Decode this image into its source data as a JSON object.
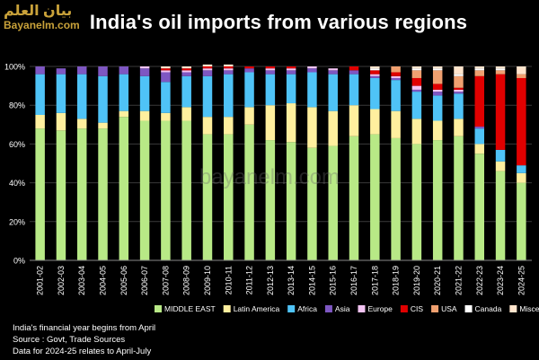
{
  "logo": {
    "arabic": "بيان العلم",
    "english": "Bayanelm.com"
  },
  "watermark": "bayanelm.com",
  "notes": [
    "India's financial year begins from April",
    "Source : Govt, Trade Sources",
    "Data for 2024-25 relates to April-July"
  ],
  "chart_data": {
    "type": "bar",
    "stacked": true,
    "title": "India's oil imports from various regions",
    "xlabel": "",
    "ylabel": "",
    "ylim": [
      0,
      100
    ],
    "y_ticks": [
      "0%",
      "20%",
      "40%",
      "60%",
      "80%",
      "100%"
    ],
    "legend_position": "bottom",
    "categories": [
      "2001-02",
      "2002-03",
      "2003-04",
      "2004-05",
      "2005-06",
      "2006-07",
      "2007-08",
      "2008-09",
      "2009-10",
      "2010-11",
      "2011-12",
      "2012-13",
      "2013-14",
      "2014-15",
      "2015-16",
      "2016-17",
      "2017-18",
      "2018-19",
      "2019-20",
      "2020-21",
      "2021-22",
      "2022-23",
      "2023-24",
      "2024-25"
    ],
    "series": [
      {
        "name": "MIDDLE EAST",
        "color": "#b8e986",
        "values": [
          68,
          67,
          68,
          68,
          74,
          72,
          72,
          72,
          65,
          65,
          70,
          62,
          61,
          58,
          59,
          64,
          65,
          63,
          60,
          62,
          64,
          55,
          46,
          40
        ]
      },
      {
        "name": "Latin America",
        "color": "#ffef9e",
        "values": [
          7,
          9,
          5,
          3,
          3,
          5,
          4,
          7,
          9,
          9,
          9,
          18,
          20,
          21,
          18,
          16,
          13,
          14,
          13,
          10,
          9,
          5,
          5,
          5
        ]
      },
      {
        "name": "Africa",
        "color": "#4fc3f7",
        "values": [
          21,
          20,
          23,
          24,
          19,
          18,
          16,
          16,
          21,
          22,
          18,
          16,
          15,
          18,
          19,
          16,
          16,
          16,
          14,
          13,
          13,
          8,
          6,
          4
        ]
      },
      {
        "name": "Asia",
        "color": "#7e57c2",
        "values": [
          4,
          3,
          4,
          5,
          4,
          4,
          5,
          2,
          3,
          2,
          2,
          2,
          2,
          2,
          2,
          2,
          1,
          1,
          1,
          2,
          1,
          1,
          0,
          0
        ]
      },
      {
        "name": "Europe",
        "color": "#f3c4f3",
        "values": [
          0,
          0,
          0,
          0,
          0,
          1,
          1,
          1,
          1,
          1,
          0,
          1,
          1,
          1,
          1,
          0,
          1,
          1,
          2,
          1,
          1,
          0,
          0,
          0
        ]
      },
      {
        "name": "CIS",
        "color": "#e00000",
        "values": [
          0,
          0,
          0,
          0,
          0,
          0,
          1,
          1,
          1,
          1,
          1,
          1,
          1,
          0,
          0,
          2,
          2,
          2,
          4,
          3,
          1,
          26,
          39,
          45
        ]
      },
      {
        "name": "USA",
        "color": "#f0a070",
        "values": [
          0,
          0,
          0,
          0,
          0,
          0,
          0,
          0,
          0,
          0,
          0,
          0,
          0,
          0,
          0,
          0,
          0,
          3,
          4,
          7,
          6,
          3,
          2,
          2
        ]
      },
      {
        "name": "Canada",
        "color": "#ffffff",
        "values": [
          0,
          0,
          0,
          0,
          0,
          0,
          0,
          0,
          0,
          0,
          0,
          0,
          0,
          0,
          0,
          0,
          1,
          0,
          1,
          1,
          1,
          1,
          1,
          0
        ]
      },
      {
        "name": "Miscellaneous",
        "color": "#ffe4cc",
        "values": [
          0,
          0,
          0,
          0,
          0,
          0,
          1,
          1,
          1,
          1,
          0,
          0,
          0,
          0,
          0,
          0,
          1,
          0,
          1,
          1,
          4,
          1,
          1,
          4
        ]
      }
    ]
  }
}
